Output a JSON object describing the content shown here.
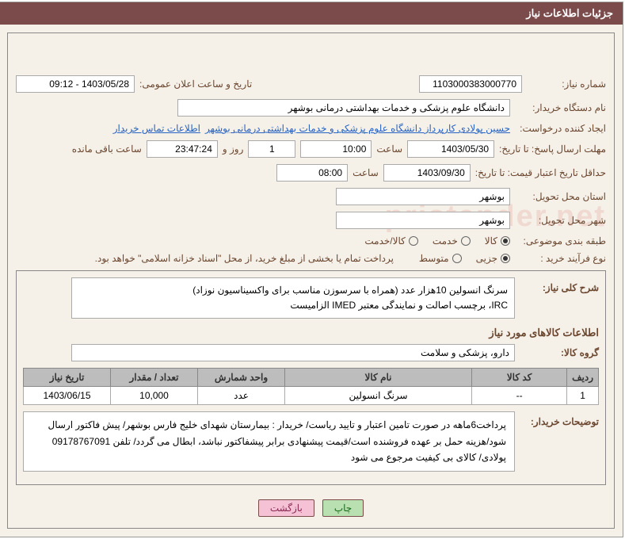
{
  "panel_title": "جزئیات اطلاعات نیاز",
  "labels": {
    "need_no": "شماره نیاز:",
    "announce_dt": "تاریخ و ساعت اعلان عمومی:",
    "buyer_org": "نام دستگاه خریدار:",
    "requester": "ایجاد کننده درخواست:",
    "contact_link": "اطلاعات تماس خریدار",
    "reply_deadline": "مهلت ارسال پاسخ: تا تاریخ:",
    "time_word": "ساعت",
    "day_and": "روز و",
    "time_left": "ساعت باقی مانده",
    "price_valid": "حداقل تاریخ اعتبار قیمت: تا تاریخ:",
    "deliver_prov": "استان محل تحویل:",
    "deliver_city": "شهر محل تحویل:",
    "subject_class": "طبقه بندی موضوعی:",
    "purchase_type": "نوع فرآیند خرید :",
    "payment_note": "پرداخت تمام یا بخشی از مبلغ خرید، از محل \"اسناد خزانه اسلامی\" خواهد بود.",
    "overall_desc": "شرح کلی نیاز:",
    "goods_info": "اطلاعات کالاهای مورد نیاز",
    "goods_group": "گروه کالا:",
    "buyer_notes": "توضیحات خریدار:"
  },
  "fields": {
    "need_no": "1103000383000770",
    "announce_dt": "1403/05/28 - 09:12",
    "buyer_org": "دانشگاه علوم پزشکی و خدمات بهداشتی درمانی بوشهر",
    "requester": "حسین پولادی کارپرداز دانشگاه علوم پزشکی و خدمات بهداشتی درمانی بوشهر",
    "reply_date": "1403/05/30",
    "reply_time": "10:00",
    "days_left": "1",
    "countdown": "23:47:24",
    "price_date": "1403/09/30",
    "price_time": "08:00",
    "province": "بوشهر",
    "city": "بوشهر",
    "goods_group": "دارو، پزشکی و سلامت",
    "overall_desc_l1": "سرنگ انسولین 10هزار عدد (همراه با سرسوزن مناسب برای واکسیناسیون نوزاد)",
    "overall_desc_l2": "IRC، برچسب اصالت و نمایندگی معتبر IMED الزامیست"
  },
  "radios": {
    "subject": [
      {
        "label": "کالا",
        "selected": true
      },
      {
        "label": "خدمت",
        "selected": false
      },
      {
        "label": "کالا/خدمت",
        "selected": false
      }
    ],
    "purchase": [
      {
        "label": "جزیی",
        "selected": true
      },
      {
        "label": "متوسط",
        "selected": false
      }
    ]
  },
  "table": {
    "headers": {
      "row": "ردیف",
      "code": "کد کالا",
      "name": "نام کالا",
      "unit": "واحد شمارش",
      "qty": "تعداد / مقدار",
      "need_date": "تاریخ نیاز"
    },
    "rows": [
      {
        "row": "1",
        "code": "--",
        "name": "سرنگ انسولین",
        "unit": "عدد",
        "qty": "10,000",
        "need_date": "1403/06/15"
      }
    ]
  },
  "buyer_notes": "پرداخت6ماهه در صورت تامین اعتبار و تایید ریاست/ خریدار : بیمارستان شهدای خلیج فارس بوشهر/ پیش فاکتور ارسال شود/هزینه حمل بر عهده فروشنده است/قیمت پیشنهادی برابر پیشفاکتور نباشد، ابطال می گردد/ تلفن 09178767091 پولادی/ کالای بی کیفیت مرجوع می شود",
  "buttons": {
    "print": "چاپ",
    "back": "بازگشت"
  },
  "watermark": "pristender.net",
  "colors": {
    "header_bg": "#7b4b4b",
    "label": "#6b4730",
    "link": "#2864c4",
    "th_bg": "#bdbdbd"
  }
}
